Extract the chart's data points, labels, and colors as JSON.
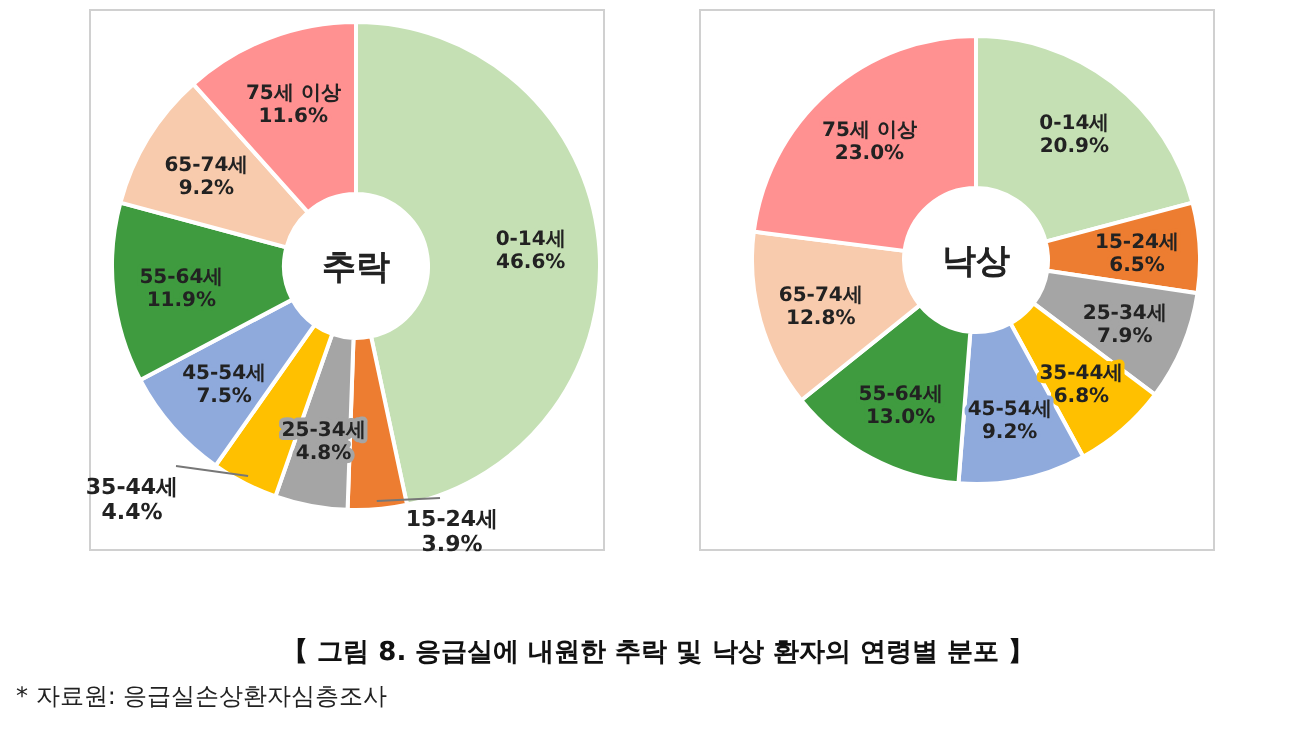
{
  "chart_data": [
    {
      "type": "donut",
      "title": "추락",
      "categories": [
        "0-14세",
        "15-24세",
        "25-34세",
        "35-44세",
        "45-54세",
        "55-64세",
        "65-74세",
        "75세 이상"
      ],
      "values": [
        46.6,
        3.9,
        4.8,
        4.4,
        7.5,
        11.9,
        9.2,
        11.6
      ],
      "value_labels": [
        "46.6%",
        "3.9%",
        "4.8%",
        "4.4%",
        "7.5%",
        "11.9%",
        "9.2%",
        "11.6%"
      ],
      "colors": [
        "#c5e0b4",
        "#ed7d31",
        "#a5a5a5",
        "#ffc000",
        "#8faadc",
        "#3f9b3f",
        "#f8cbad",
        "#ff9191"
      ]
    },
    {
      "type": "donut",
      "title": "낙상",
      "categories": [
        "0-14세",
        "15-24세",
        "25-34세",
        "35-44세",
        "45-54세",
        "55-64세",
        "65-74세",
        "75세 이상"
      ],
      "values": [
        20.9,
        6.5,
        7.9,
        6.8,
        9.2,
        13.0,
        12.8,
        23.0
      ],
      "value_labels": [
        "20.9%",
        "6.5%",
        "7.9%",
        "6.8%",
        "9.2%",
        "13.0%",
        "12.8%",
        "23.0%"
      ],
      "colors": [
        "#c5e0b4",
        "#ed7d31",
        "#a5a5a5",
        "#ffc000",
        "#8faadc",
        "#3f9b3f",
        "#f8cbad",
        "#ff9191"
      ],
      "annotations": [
        "【 그림 8. 응급실에 내원한 추락 및 낙상 환자의 연령별 분포 】",
        "* 자료원: 응급실손상환자심층조사"
      ]
    }
  ]
}
